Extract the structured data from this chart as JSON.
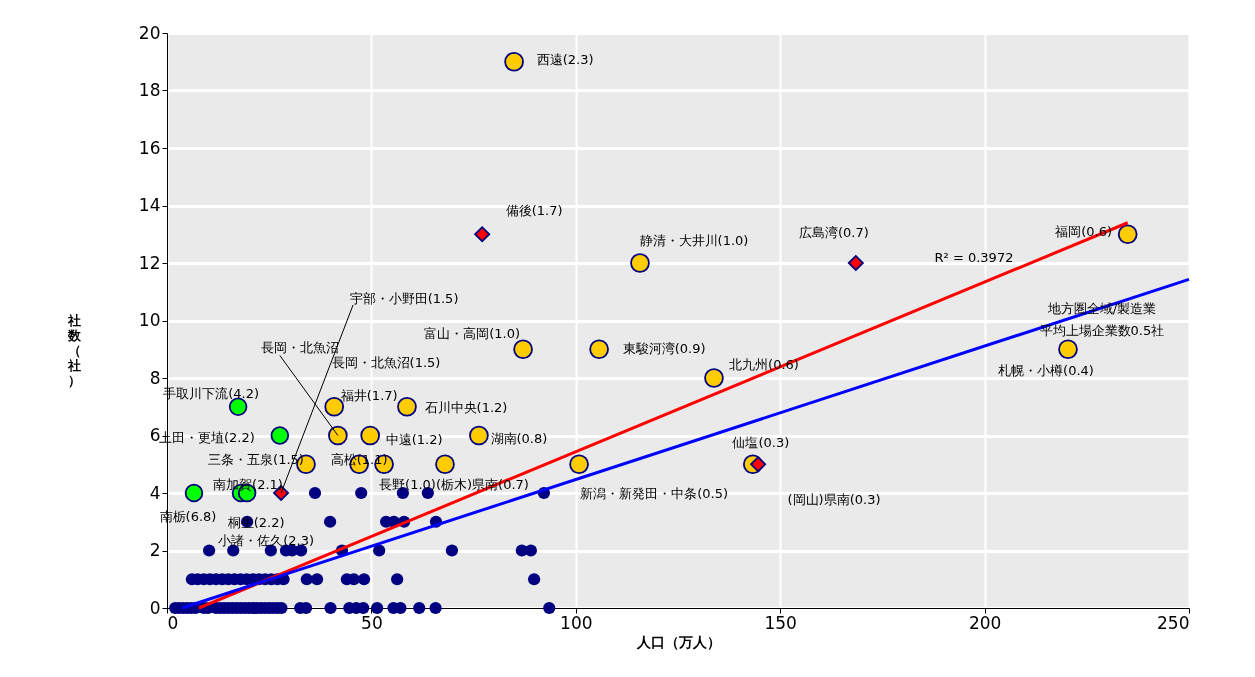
{
  "chart_data": {
    "type": "scatter",
    "xlabel": "人口（万人）",
    "ylabel": "社数（社）",
    "xlim": [
      0,
      250
    ],
    "xticks": [
      0,
      50,
      100,
      150,
      200,
      250
    ],
    "ylim": [
      0,
      20
    ],
    "yticks": [
      0,
      2,
      4,
      6,
      8,
      10,
      12,
      14,
      16,
      18,
      20
    ],
    "grid": true,
    "marker": "circle",
    "series": [
      {
        "color": "#000080",
        "x": [
          2,
          3,
          4,
          5,
          6,
          7,
          9,
          10,
          12,
          13,
          14,
          15,
          16,
          17,
          18,
          19,
          20,
          21,
          22,
          23,
          24,
          25,
          26,
          27,
          28,
          32.6,
          34,
          40,
          44.6,
          46.3,
          48,
          51.4,
          55.4,
          57.1,
          61.7,
          65.7,
          93.5,
          6.1,
          7.5,
          9,
          10.5,
          12,
          13.5,
          15,
          16.5,
          18,
          19.5,
          21,
          22.5,
          24,
          25.5,
          27,
          28.5,
          34.2,
          36.7,
          44,
          45.7,
          48.2,
          56.3,
          89.8,
          10.3,
          16.2,
          25.4,
          29.1,
          30.6,
          32.8,
          42.8,
          51.9,
          69.7,
          86.8,
          89,
          19.6,
          39.9,
          53.6,
          55.5,
          58,
          65.8,
          36.2,
          47.5,
          57.7,
          63.8,
          92.2
        ],
        "values": [
          0,
          0,
          0,
          0,
          0,
          0,
          0,
          0,
          0,
          0,
          0,
          0,
          0,
          0,
          0,
          0,
          0,
          0,
          0,
          0,
          0,
          0,
          0,
          0,
          0,
          0,
          0,
          0,
          0,
          0,
          0,
          0,
          0,
          0,
          0,
          0,
          0,
          1,
          1,
          1,
          1,
          1,
          1,
          1,
          1,
          1,
          1,
          1,
          1,
          1,
          1,
          1,
          1,
          1,
          1,
          1,
          1,
          1,
          1,
          1,
          2,
          2,
          2,
          2,
          2,
          2,
          2,
          2,
          2,
          2,
          2,
          3,
          3,
          3,
          3,
          3,
          3,
          4,
          4,
          4,
          4,
          4
        ]
      },
      {
        "color": "#ffcc00",
        "x": [
          84.9,
          115.7,
          235,
          87.1,
          105.7,
          220.4,
          133.8,
          40.9,
          58.7,
          41.8,
          49.7,
          76.3,
          34,
          47,
          53.1,
          68,
          100.8,
          143.3
        ],
        "values": [
          19,
          12,
          13,
          9,
          9,
          9,
          8,
          7,
          7,
          6,
          6,
          6,
          5,
          5,
          5,
          5,
          5,
          5
        ]
      },
      {
        "color": "#00ff00",
        "x": [
          17.4,
          27.6,
          6.6,
          18.1,
          19.6
        ],
        "values": [
          7,
          6,
          4,
          4,
          4
        ]
      },
      {
        "color": "#ff0000",
        "marker": "diamond",
        "x": [
          77.1,
          168.5,
          27.9,
          144.6
        ],
        "values": [
          13,
          12,
          4,
          5
        ]
      },
      {
        "type": "line",
        "marker": "none",
        "color": "#ff0000",
        "x": [
          7.8,
          235
        ],
        "values": [
          0,
          13.4
        ]
      },
      {
        "type": "line",
        "marker": "none",
        "color": "#0000ff",
        "x": [
          3.7,
          250
        ],
        "values": [
          0,
          11.43
        ]
      }
    ],
    "annotations": [
      {
        "text": "西遠(2.3)",
        "x": 84.9,
        "y": 19
      },
      {
        "text": "備後(1.7)",
        "x": 77.1,
        "y": 13
      },
      {
        "text": "静清・大井川(1.0)",
        "x": 115.7,
        "y": 12
      },
      {
        "text": "広島湾(0.7)",
        "x": 168.5,
        "y": 12
      },
      {
        "text": "R² = 0.3972",
        "x": 197.4,
        "y": 11.18
      },
      {
        "text": "福岡(0.6)",
        "x": 235,
        "y": 13
      },
      {
        "text": "地方圏全域/製造業",
        "x": 228.7,
        "y": 10.44
      },
      {
        "text": "平均上場企業数0.5社",
        "x": 228.7,
        "y": 10.44
      },
      {
        "text": "札幌・小樽(0.4)",
        "x": 220.4,
        "y": 9
      },
      {
        "text": "北九州(0.6)",
        "x": 133.8,
        "y": 8
      },
      {
        "text": "宇部・小野田(1.5)",
        "x": 27.9,
        "y": 4
      },
      {
        "text": "富山・高岡(1.0)",
        "x": 87.1,
        "y": 9
      },
      {
        "text": "東駿河湾(0.9)",
        "x": 105.7,
        "y": 9
      },
      {
        "text": "長岡・北魚沼",
        "x": 41.8,
        "y": 6
      },
      "長岡・北魚沼(1.5)",
      {
        "text": "手取川下流(4.2)",
        "x": 17.4,
        "y": 7
      },
      {
        "text": "福井(1.7)",
        "x": 40.9,
        "y": 7
      },
      {
        "text": "石川中央(1.2)",
        "x": 58.7,
        "y": 7
      },
      {
        "text": "上田・更埴(2.2)",
        "x": 27.6,
        "y": 6
      },
      {
        "text": "中遠(1.2)",
        "x": 49.7,
        "y": 6
      },
      {
        "text": "湖南(0.8)",
        "x": 76.3,
        "y": 6
      },
      {
        "text": "三条・五泉(1.5)",
        "x": 34,
        "y": 5
      },
      {
        "text": "高松(1.1)",
        "x": 47,
        "y": 5
      },
      {
        "text": "仙塩(0.3)",
        "x": 143.3,
        "y": 5
      },
      {
        "text": "南加賀(2.1)",
        "x": 18.1,
        "y": 4
      },
      {
        "text": "長野(1.0)(栃木)県南(0.7)",
        "x": 68,
        "y": 5
      },
      {
        "text": "新潟・新発田・中条(0.5)",
        "x": 100.8,
        "y": 5
      },
      "(岡山)県南(0.3)",
      {
        "text": "南栃(6.8)",
        "x": 6.6,
        "y": 4
      },
      {
        "text": "桐生(2.2)",
        "x": 19.6,
        "y": 4
      },
      {
        "text": "小諸・佐久(2.3)",
        "x": 19.6,
        "y": 3
      }
    ]
  }
}
